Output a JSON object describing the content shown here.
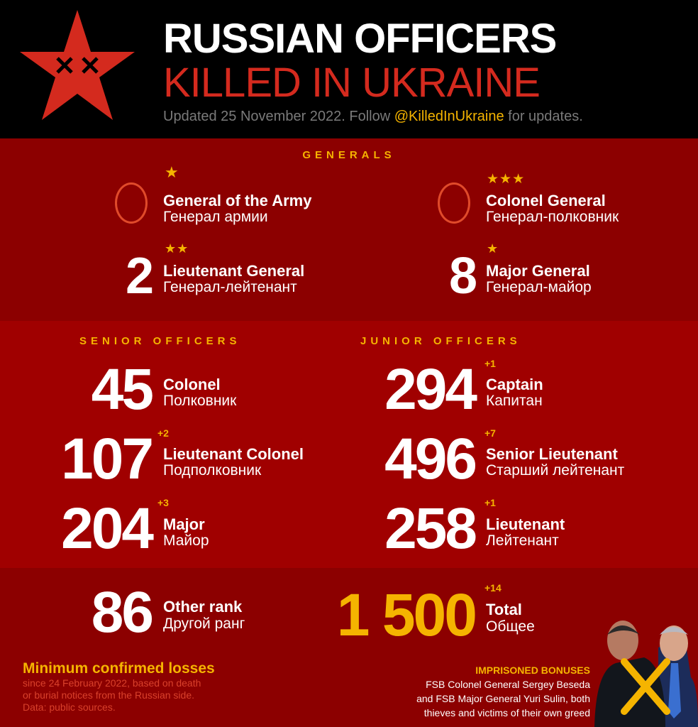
{
  "header": {
    "title_line1": "RUSSIAN OFFICERS",
    "title_line2": "KILLED IN UKRAINE",
    "updated_prefix": "Updated 25 November 2022. Follow ",
    "handle": "@KilledInUkraine",
    "updated_suffix": " for updates.",
    "logo_icon": "red-star-with-crossed-eyes"
  },
  "generals": {
    "heading": "GENERALS",
    "items": [
      {
        "count": "0",
        "stars": "★",
        "label": "General of the Army",
        "russian": "Генерал армии"
      },
      {
        "count": "0",
        "stars": "★★★",
        "label": "Colonel General",
        "russian": "Генерал-полковник"
      },
      {
        "count": "2",
        "stars": "★★",
        "label": "Lieutenant General",
        "russian": "Генерал-лейтенант"
      },
      {
        "count": "8",
        "stars": "★",
        "label": "Major General",
        "russian": "Генерал-майор"
      }
    ]
  },
  "senior": {
    "heading": "SENIOR OFFICERS",
    "items": [
      {
        "count": "45",
        "delta": "",
        "label": "Colonel",
        "russian": "Полковник"
      },
      {
        "count": "107",
        "delta": "+2",
        "label": "Lieutenant Colonel",
        "russian": "Подполковник"
      },
      {
        "count": "204",
        "delta": "+3",
        "label": "Major",
        "russian": "Майор"
      }
    ]
  },
  "junior": {
    "heading": "JUNIOR OFFICERS",
    "items": [
      {
        "count": "294",
        "delta": "+1",
        "label": "Captain",
        "russian": "Капитан"
      },
      {
        "count": "496",
        "delta": "+7",
        "label": "Senior Lieutenant",
        "russian": "Старший лейтенант"
      },
      {
        "count": "258",
        "delta": "+1",
        "label": "Lieutenant",
        "russian": "Лейтенант"
      }
    ]
  },
  "other": {
    "count": "86",
    "label": "Other rank",
    "russian": "Другой ранг"
  },
  "total": {
    "count": "1 500",
    "delta": "+14",
    "label": "Total",
    "russian": "Общее"
  },
  "footer": {
    "title": "Minimum confirmed losses",
    "note_lines": [
      "since 24 February 2022, based on death",
      "or burial notices from the Russian side.",
      "Data: public sources."
    ],
    "bonus_title": "IMPRISONED BONUSES",
    "bonus_lines": [
      "FSB Colonel General Sergey Beseda",
      "and FSB Major General Yuri Sulin, both",
      "thieves and victims of their own greed"
    ]
  },
  "colors": {
    "header_bg": "#000000",
    "generals_bg": "#8c0000",
    "officers_bg": "#a00000",
    "bottom_bg": "#8c0000",
    "accent": "#f5b400",
    "red": "#d42a1e"
  }
}
